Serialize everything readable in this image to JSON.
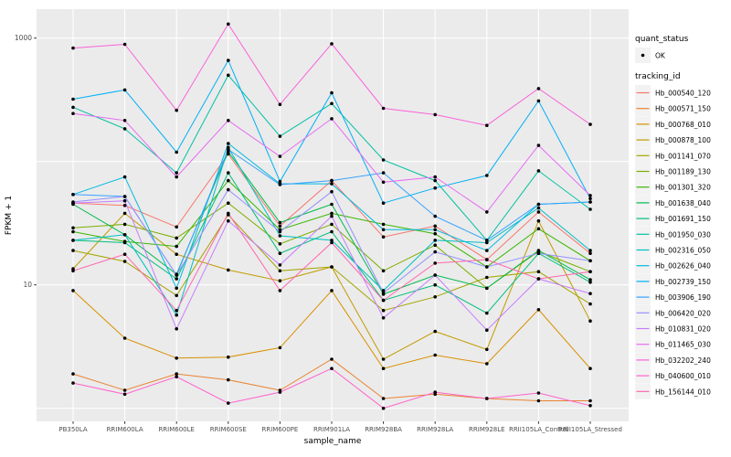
{
  "chart_data": {
    "type": "line",
    "title": "",
    "xlabel": "sample_name",
    "ylabel": "FPKM + 1",
    "y_scale": "log10",
    "ylim": [
      1,
      1500
    ],
    "y_tick_labels": [
      {
        "value": 1000,
        "label": "1000"
      },
      {
        "value": 10,
        "label": "10"
      }
    ],
    "y_gridlines": [
      1,
      10,
      100,
      1000
    ],
    "grid": true,
    "legend_position": "right",
    "categories": [
      "PB350LA",
      "RRIM600LA",
      "RRIM600LE",
      "RRIM600SE",
      "RRIM600PE",
      "RRIM901LA",
      "RRIM928BA",
      "RRIM928LA",
      "RRIM928LE",
      "RRII105LA_Control",
      "RRII105LA_Stressed"
    ],
    "series": [
      {
        "name": "Hb_000540_120",
        "color": "#F8766D",
        "values": [
          46,
          44,
          29.5,
          115,
          30,
          70,
          24.5,
          30,
          16,
          39,
          18
        ]
      },
      {
        "name": "Hb_000571_150",
        "color": "#EA8331",
        "values": [
          1.9,
          1.4,
          1.9,
          1.7,
          1.4,
          2.5,
          1.2,
          1.3,
          1.2,
          1.15,
          1.15
        ]
      },
      {
        "name": "Hb_000768_010",
        "color": "#D89000",
        "values": [
          9,
          3.7,
          2.55,
          2.6,
          3.1,
          9,
          2.1,
          2.7,
          2.3,
          6.3,
          2.1
        ]
      },
      {
        "name": "Hb_000878_100",
        "color": "#C09B00",
        "values": [
          13.5,
          38,
          17.7,
          13.2,
          10.8,
          14,
          2.5,
          4.2,
          3.0,
          33,
          5.1
        ]
      },
      {
        "name": "Hb_001141_070",
        "color": "#A3A500",
        "values": [
          19,
          15.5,
          8.2,
          37,
          13,
          14,
          6.2,
          8,
          11.5,
          12.8,
          7
        ]
      },
      {
        "name": "Hb_001189_130",
        "color": "#7CAE00",
        "values": [
          29,
          31,
          24,
          46,
          21.5,
          31,
          13,
          21,
          9.4,
          18.7,
          12.8
        ]
      },
      {
        "name": "Hb_001301_320",
        "color": "#39B600",
        "values": [
          27,
          22.5,
          20.5,
          70,
          28,
          38,
          31,
          26,
          14,
          28.5,
          15.7
        ]
      },
      {
        "name": "Hb_001638_040",
        "color": "#00BB4E",
        "values": [
          45,
          25.5,
          12.2,
          120,
          32,
          45,
          8.4,
          12,
          9.4,
          19,
          11
        ]
      },
      {
        "name": "Hb_001691_150",
        "color": "#00BF7D",
        "values": [
          23,
          22,
          11.2,
          81,
          18,
          27,
          7.5,
          10,
          5.9,
          18,
          10.5
        ]
      },
      {
        "name": "Hb_001950_030",
        "color": "#00C1A3",
        "values": [
          275,
          184,
          81,
          500,
          160,
          295,
          103,
          70,
          23,
          84,
          41
        ]
      },
      {
        "name": "Hb_002316_050",
        "color": "#00BFC4",
        "values": [
          23,
          25.5,
          5.7,
          130,
          25,
          23,
          9,
          23,
          22,
          42,
          19
        ]
      },
      {
        "name": "Hb_002626_040",
        "color": "#00BAE0",
        "values": [
          54,
          75,
          9.4,
          140,
          66,
          66,
          28,
          28,
          19,
          45,
          47
        ]
      },
      {
        "name": "Hb_002739_150",
        "color": "#00B0F6",
        "values": [
          320,
          380,
          119,
          660,
          69,
          360,
          46,
          61,
          77,
          310,
          50
        ]
      },
      {
        "name": "Hb_003906_190",
        "color": "#35A2FF",
        "values": [
          54,
          52,
          12,
          125,
          65,
          70,
          81,
          36,
          23,
          45,
          47
        ]
      },
      {
        "name": "Hb_006420_020",
        "color": "#9590FF",
        "values": [
          47,
          52,
          12,
          59,
          27,
          57,
          8.6,
          18.5,
          14,
          18,
          15.7
        ]
      },
      {
        "name": "Hb_010831_020",
        "color": "#C77CFF",
        "values": [
          46,
          48,
          4.4,
          33,
          14.5,
          36,
          5.4,
          12,
          4.3,
          11.2,
          8.5
        ]
      },
      {
        "name": "Hb_011465_030",
        "color": "#E76BF3",
        "values": [
          245,
          215,
          75,
          215,
          110,
          222,
          68,
          75,
          39,
          135,
          53
        ]
      },
      {
        "name": "Hb_032202_240",
        "color": "#FA62DB",
        "values": [
          830,
          890,
          260,
          1300,
          290,
          900,
          270,
          240,
          196,
          390,
          200
        ]
      },
      {
        "name": "Hb_040600_010",
        "color": "#FF61CC",
        "values": [
          1.6,
          1.3,
          1.8,
          1.1,
          1.35,
          2.1,
          1.0,
          1.35,
          1.2,
          1.33,
          1.05
        ]
      },
      {
        "name": "Hb_156144_010",
        "color": "#FF65AE",
        "values": [
          13,
          17.7,
          6.2,
          38,
          9,
          22,
          7.5,
          15,
          16,
          11.2,
          12.8
        ]
      }
    ],
    "legend": {
      "quant_status_title": "quant_status",
      "quant_status_items": [
        {
          "label": "OK",
          "marker": "point"
        }
      ],
      "tracking_title": "tracking_id"
    },
    "style": {
      "panel_bg": "#EBEBEB",
      "grid_color": "#FFFFFF",
      "point_color": "#000000",
      "legend_key_bg": "#F2F2F2",
      "tick_color": "#333333",
      "tick_label_color": "#4D4D4D",
      "title_color": "#000000"
    }
  }
}
